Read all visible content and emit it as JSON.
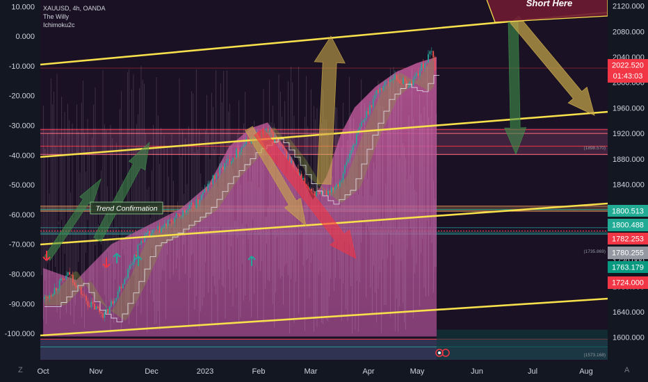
{
  "legend": {
    "symbol": "XAUUSD, 4h, OANDA",
    "indicator1": "The Willy",
    "indicator2": "Ichimoku2c"
  },
  "corner": {
    "left": "Z",
    "right": "A"
  },
  "colors": {
    "bg": "#131722",
    "yellow": "#f7e04b",
    "pink": "#c2599a",
    "red": "#f23645",
    "green": "#26a69a",
    "teal": "#22ab94"
  },
  "chart_data": {
    "type": "line",
    "symbol": "XAUUSD",
    "interval": "4h",
    "source": "OANDA",
    "x_ticks": [
      "Oct",
      "Nov",
      "Dec",
      "2023",
      "Feb",
      "Mar",
      "Apr",
      "May",
      "Jun",
      "Jul",
      "Aug"
    ],
    "price_axis": {
      "ticks": [
        "2120.000",
        "2080.000",
        "2040.000",
        "2000.000",
        "1960.000",
        "1920.000",
        "1880.000",
        "1840.000",
        "1800.000",
        "1760.000",
        "1720.000",
        "1680.000",
        "1640.000",
        "1600.000"
      ],
      "range": [
        1592,
        2124
      ]
    },
    "oscillator_axis": {
      "ticks": [
        "10.000",
        "0.000",
        "-10.000",
        "-20.000",
        "-30.000",
        "-40.000",
        "-50.000",
        "-60.000",
        "-70.000",
        "-80.000",
        "-90.000",
        "-100.000"
      ],
      "range": [
        -103,
        11
      ]
    },
    "price_labels": [
      {
        "value": "2022.520",
        "sub": "01:43:03",
        "price": 2022.5,
        "color": "#f23645"
      },
      {
        "value": "1800.513",
        "price": 1800.5,
        "color": "#22ab94"
      },
      {
        "value": "1800.488",
        "price": 1800.5,
        "color": "#22ab94"
      },
      {
        "value": "1782.253",
        "price": 1782.3,
        "color": "#f23645"
      },
      {
        "value": "1780.255",
        "price": 1780.3,
        "color": "#9598a1"
      },
      {
        "value": "1763.179",
        "price": 1763.2,
        "color": "#089981"
      },
      {
        "value": "1724.000",
        "price": 1724.0,
        "color": "#f23645"
      }
    ],
    "small_price_notes": [
      {
        "text": "(1898.570)",
        "price": 1898.6
      },
      {
        "text": "(1735.869)",
        "price": 1735.9
      },
      {
        "text": "(1573.168)",
        "price": 1573.2
      }
    ],
    "annotations": [
      {
        "text": "Trend Confirmation"
      },
      {
        "text": "Short Here"
      }
    ],
    "price_series": [
      {
        "month": "Oct",
        "price": 1660
      },
      {
        "month": "Oct",
        "price": 1700
      },
      {
        "month": "Oct",
        "price": 1655
      },
      {
        "month": "Nov",
        "price": 1635
      },
      {
        "month": "Nov",
        "price": 1690
      },
      {
        "month": "Nov",
        "price": 1755
      },
      {
        "month": "Dec",
        "price": 1770
      },
      {
        "month": "Dec",
        "price": 1790
      },
      {
        "month": "Dec",
        "price": 1810
      },
      {
        "month": "2023",
        "price": 1860
      },
      {
        "month": "2023",
        "price": 1905
      },
      {
        "month": "Feb",
        "price": 1925
      },
      {
        "month": "Feb",
        "price": 1890
      },
      {
        "month": "Feb",
        "price": 1845
      },
      {
        "month": "Mar",
        "price": 1820
      },
      {
        "month": "Mar",
        "price": 1845
      },
      {
        "month": "Mar",
        "price": 1925
      },
      {
        "month": "Apr",
        "price": 1985
      },
      {
        "month": "Apr",
        "price": 2010
      },
      {
        "month": "Apr",
        "price": 1995
      },
      {
        "month": "May",
        "price": 2048
      },
      {
        "month": "May",
        "price": 2022
      }
    ]
  }
}
